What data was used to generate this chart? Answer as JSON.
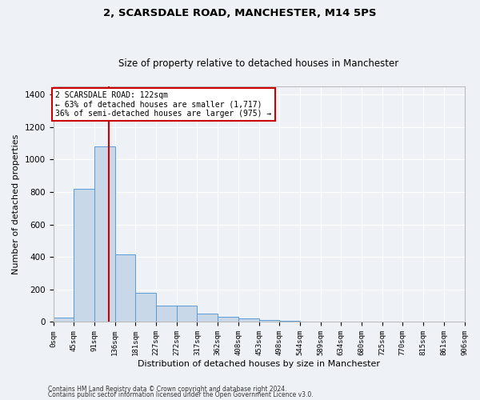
{
  "title1": "2, SCARSDALE ROAD, MANCHESTER, M14 5PS",
  "title2": "Size of property relative to detached houses in Manchester",
  "xlabel": "Distribution of detached houses by size in Manchester",
  "ylabel": "Number of detached properties",
  "bar_color": "#c8d8e8",
  "bar_edge_color": "#5b9bd5",
  "vline_color": "#cc0000",
  "vline_x": 122,
  "bar_left_edges": [
    0,
    45,
    91,
    136,
    181,
    227,
    272,
    317,
    362,
    408,
    453,
    498,
    544,
    589,
    634,
    680,
    725,
    770,
    815,
    861
  ],
  "bar_widths": [
    45,
    46,
    45,
    45,
    46,
    45,
    45,
    45,
    46,
    45,
    45,
    46,
    45,
    45,
    46,
    45,
    45,
    45,
    46,
    45
  ],
  "bar_heights": [
    25,
    820,
    1080,
    415,
    180,
    100,
    100,
    50,
    30,
    20,
    10,
    5,
    2,
    1,
    0,
    0,
    0,
    0,
    0,
    0
  ],
  "xtick_positions": [
    0,
    45,
    91,
    136,
    181,
    227,
    272,
    317,
    362,
    408,
    453,
    498,
    544,
    589,
    634,
    680,
    725,
    770,
    815,
    861,
    906
  ],
  "xtick_labels": [
    "0sqm",
    "45sqm",
    "91sqm",
    "136sqm",
    "181sqm",
    "227sqm",
    "272sqm",
    "317sqm",
    "362sqm",
    "408sqm",
    "453sqm",
    "498sqm",
    "544sqm",
    "589sqm",
    "634sqm",
    "680sqm",
    "725sqm",
    "770sqm",
    "815sqm",
    "861sqm",
    "906sqm"
  ],
  "ylim": [
    0,
    1450
  ],
  "xlim": [
    0,
    906
  ],
  "yticks": [
    0,
    200,
    400,
    600,
    800,
    1000,
    1200,
    1400
  ],
  "annotation_text": "2 SCARSDALE ROAD: 122sqm\n← 63% of detached houses are smaller (1,717)\n36% of semi-detached houses are larger (975) →",
  "annotation_box_color": "#ffffff",
  "annotation_box_edge": "#cc0000",
  "footnote1": "Contains HM Land Registry data © Crown copyright and database right 2024.",
  "footnote2": "Contains public sector information licensed under the Open Government Licence v3.0.",
  "background_color": "#eef2f7",
  "grid_color": "#ffffff",
  "title1_fontsize": 9.5,
  "title2_fontsize": 8.5,
  "xlabel_fontsize": 8,
  "ylabel_fontsize": 8,
  "annotation_fontsize": 7,
  "tick_fontsize": 6.5,
  "ytick_fontsize": 7.5,
  "footnote_fontsize": 5.5
}
